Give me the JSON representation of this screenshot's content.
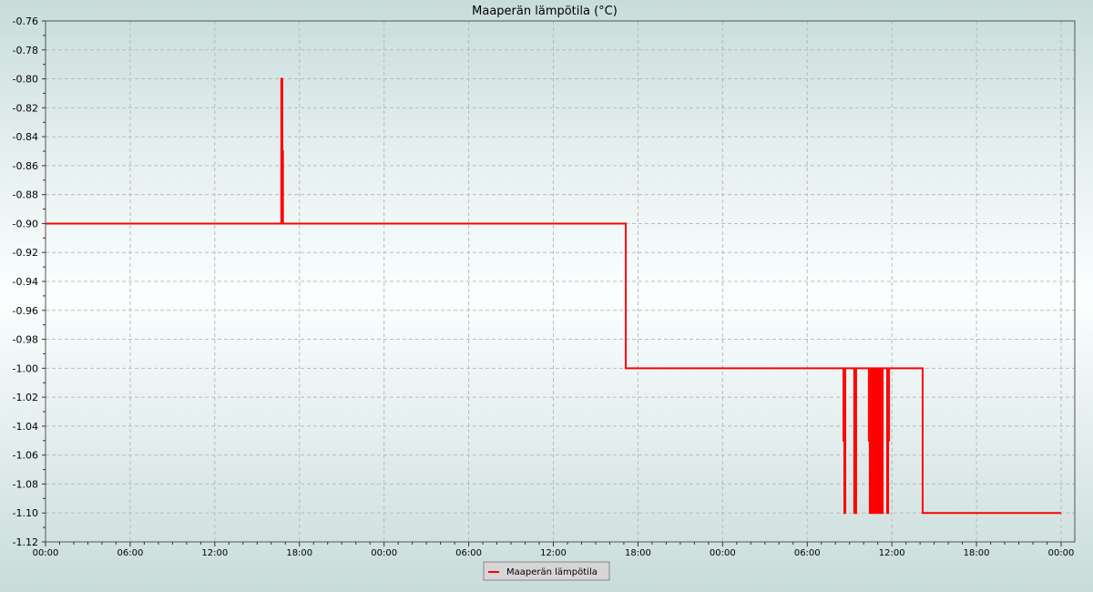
{
  "chart_data": {
    "type": "line",
    "title": "Maaperän lämpötila (°C)",
    "xlabel": "",
    "ylabel": "",
    "ylim": [
      -1.12,
      -0.76
    ],
    "ytick_step": 0.02,
    "xticks": [
      "00:00",
      "06:00",
      "12:00",
      "18:00",
      "00:00",
      "06:00",
      "12:00",
      "18:00",
      "00:00",
      "06:00",
      "12:00",
      "18:00",
      "00:00"
    ],
    "grid": true,
    "legend_position": "bottom",
    "color": "#ff0000",
    "series": [
      {
        "name": "Maaperän lämpötila",
        "step": true,
        "points": [
          [
            1,
            "00:00",
            -0.9
          ],
          [
            1,
            "16:43",
            -0.8
          ],
          [
            1,
            "16:47",
            -0.85
          ],
          [
            1,
            "16:50",
            -0.9
          ],
          [
            2,
            "17:08",
            -1.0
          ],
          [
            3,
            "08:34",
            -1.05
          ],
          [
            3,
            "08:38",
            -1.1
          ],
          [
            3,
            "08:42",
            -1.0
          ],
          [
            3,
            "09:20",
            -1.1
          ],
          [
            3,
            "09:28",
            -1.0
          ],
          [
            3,
            "10:22",
            -1.05
          ],
          [
            3,
            "10:26",
            -1.1
          ],
          [
            3,
            "10:30",
            -1.0
          ],
          [
            3,
            "10:34",
            -1.1
          ],
          [
            3,
            "10:38",
            -1.0
          ],
          [
            3,
            "10:42",
            -1.1
          ],
          [
            3,
            "10:46",
            -1.0
          ],
          [
            3,
            "10:50",
            -1.1
          ],
          [
            3,
            "10:53",
            -1.0
          ],
          [
            3,
            "10:58",
            -1.1
          ],
          [
            3,
            "11:01",
            -1.0
          ],
          [
            3,
            "11:05",
            -1.1
          ],
          [
            3,
            "11:09",
            -1.0
          ],
          [
            3,
            "11:13",
            -1.1
          ],
          [
            3,
            "11:21",
            -1.0
          ],
          [
            3,
            "11:40",
            -1.1
          ],
          [
            3,
            "11:44",
            -1.05
          ],
          [
            3,
            "11:48",
            -1.0
          ],
          [
            3,
            "14:11",
            -1.1
          ],
          [
            4,
            "00:00",
            -1.1
          ]
        ]
      }
    ]
  }
}
